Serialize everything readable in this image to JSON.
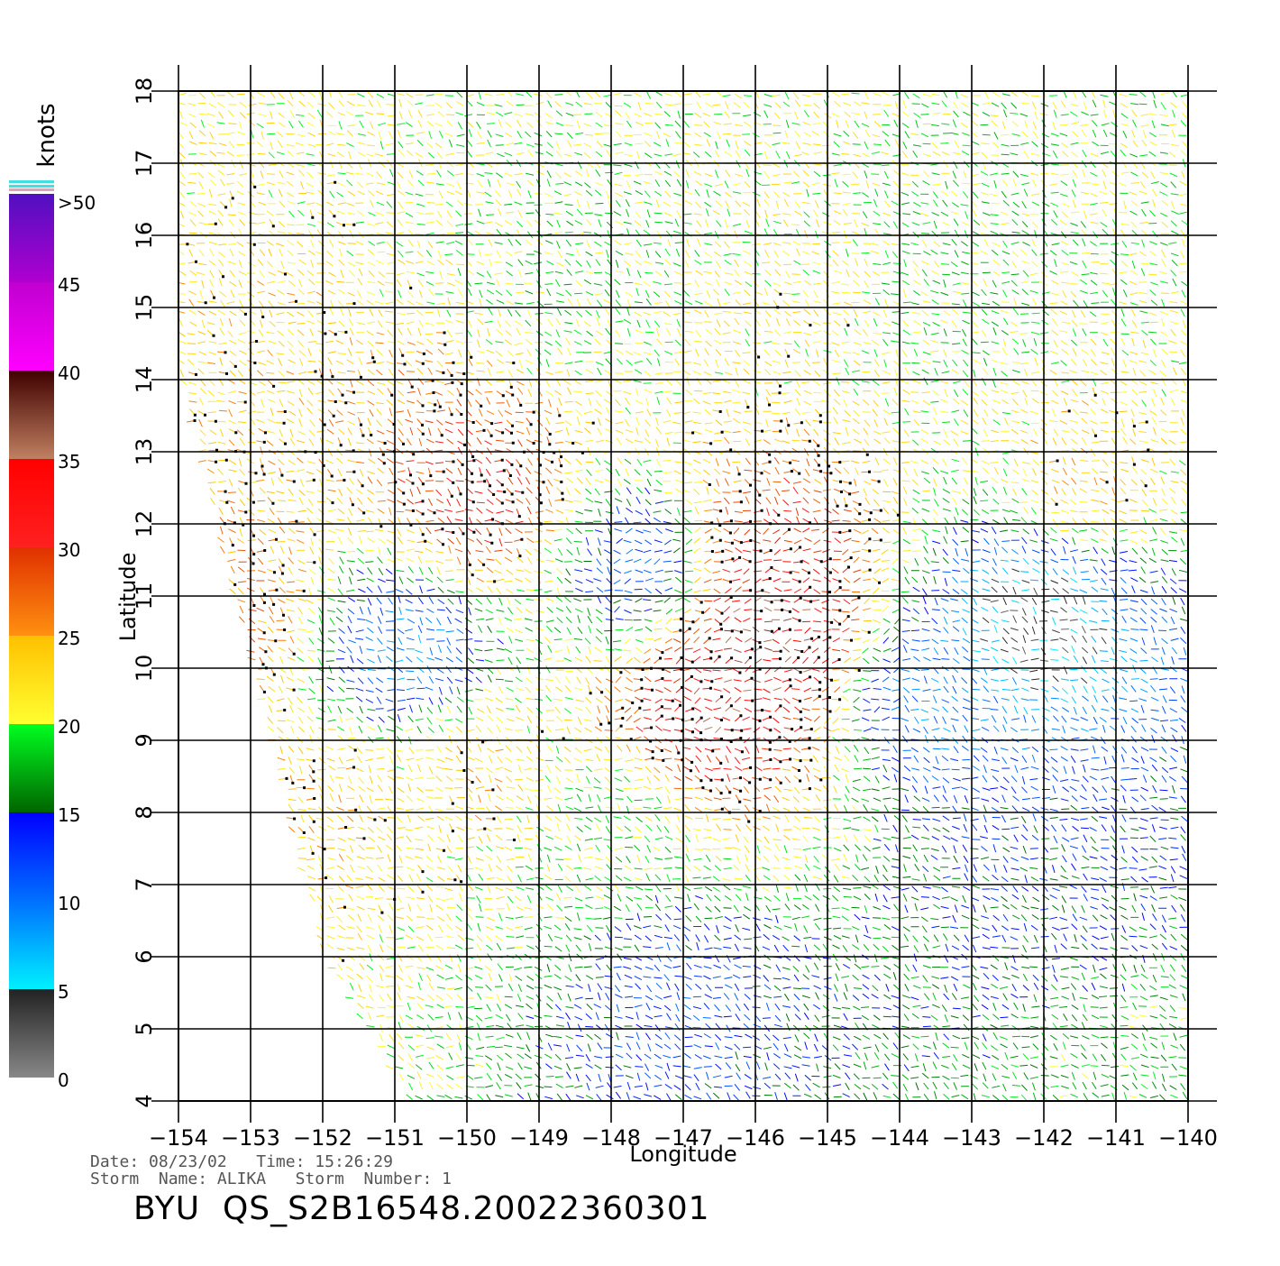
{
  "colorbar": {
    "unit_label": "knots",
    "top_label": ">50",
    "tick_labels": [
      "0",
      "5",
      "10",
      "15",
      "20",
      "25",
      "30",
      "35",
      "40",
      "45"
    ],
    "segments": [
      {
        "from": 0,
        "to": 5,
        "color_low": "#888888",
        "color_high": "#222222"
      },
      {
        "from": 5,
        "to": 10,
        "color_low": "#00f0ff",
        "color_high": "#0070ff"
      },
      {
        "from": 10,
        "to": 15,
        "color_low": "#0070ff",
        "color_high": "#0000ff"
      },
      {
        "from": 15,
        "to": 20,
        "color_low": "#006400",
        "color_high": "#00ff20"
      },
      {
        "from": 20,
        "to": 25,
        "color_low": "#ffff30",
        "color_high": "#ffc000"
      },
      {
        "from": 25,
        "to": 30,
        "color_low": "#ff9010",
        "color_high": "#e03000"
      },
      {
        "from": 30,
        "to": 35,
        "color_low": "#ff2020",
        "color_high": "#ff0000"
      },
      {
        "from": 35,
        "to": 40,
        "color_low": "#c08060",
        "color_high": "#400000"
      },
      {
        "from": 40,
        "to": 45,
        "color_low": "#ff00ff",
        "color_high": "#c000d0"
      },
      {
        "from": 45,
        "to": 50,
        "color_low": "#b000d0",
        "color_high": "#5010c0"
      }
    ]
  },
  "map": {
    "x_axis_label": "Longitude",
    "y_axis_label": "Latitude",
    "lon_range": [
      -154,
      -140
    ],
    "lat_range": [
      4,
      18
    ],
    "lon_ticks": [
      "-154",
      "-153",
      "-152",
      "-151",
      "-150",
      "-149",
      "-148",
      "-147",
      "-146",
      "-145",
      "-144",
      "-143",
      "-142",
      "-141",
      "-140"
    ],
    "lat_ticks": [
      "4",
      "5",
      "6",
      "7",
      "8",
      "9",
      "10",
      "11",
      "12",
      "13",
      "14",
      "15",
      "16",
      "17",
      "18"
    ],
    "grid": true,
    "swath_lon_lat": [
      [
        -154,
        18
      ],
      [
        -140,
        18
      ],
      [
        -140,
        4
      ],
      [
        -150.8,
        4
      ],
      [
        -152,
        6
      ],
      [
        -154,
        14
      ]
    ],
    "wind_regions": [
      {
        "lon": -153.3,
        "lat": 10.8,
        "speed": 27
      },
      {
        "lon": -152.0,
        "lat": 8.2,
        "speed": 24
      },
      {
        "lon": -149.8,
        "lat": 12.3,
        "speed": 31
      },
      {
        "lon": -149.9,
        "lat": 8.7,
        "speed": 24
      },
      {
        "lon": -146.7,
        "lat": 9.5,
        "speed": 34
      },
      {
        "lon": -145.8,
        "lat": 10.5,
        "speed": 37
      },
      {
        "lon": -145.9,
        "lat": 11.6,
        "speed": 31
      },
      {
        "lon": -141.5,
        "lat": 12.6,
        "speed": 24
      },
      {
        "lon": -142.1,
        "lat": 10.7,
        "speed": 3
      },
      {
        "lon": -145.3,
        "lat": 14.6,
        "speed": 22
      },
      {
        "lon": -148.4,
        "lat": 15.5,
        "speed": 19
      },
      {
        "lon": -143.4,
        "lat": 15.2,
        "speed": 19
      },
      {
        "lon": -150.8,
        "lat": 10.2,
        "speed": 8
      },
      {
        "lon": -147.6,
        "lat": 11.4,
        "speed": 10
      },
      {
        "lon": -142.0,
        "lat": 7.0,
        "speed": 14
      },
      {
        "lon": -147.0,
        "lat": 5.5,
        "speed": 12
      },
      {
        "lon": -148.0,
        "lat": 7.8,
        "speed": 19
      },
      {
        "lon": -143.5,
        "lat": 9.6,
        "speed": 9
      },
      {
        "lon": -141.0,
        "lat": 4.6,
        "speed": 18
      }
    ]
  },
  "footer": {
    "date_label": "Date:",
    "date": "08/23/02",
    "time_label": "Time:",
    "time": "15:26:29",
    "storm_name_label": "Storm  Name:",
    "storm_name": "ALIKA",
    "storm_number_label": "Storm  Number:",
    "storm_number": "1",
    "product_title": "BYU  QS_S2B16548.20022360301"
  }
}
